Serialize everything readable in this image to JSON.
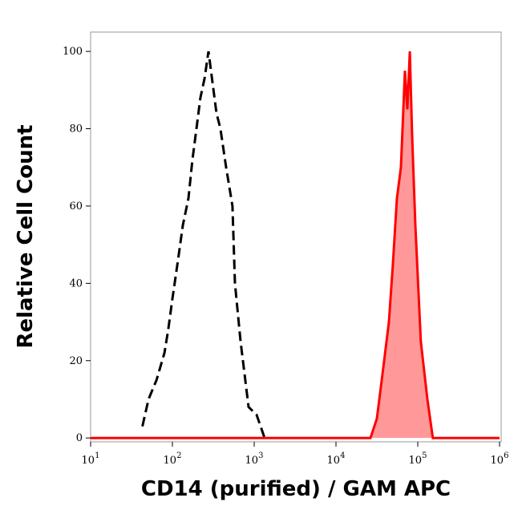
{
  "chart_data": {
    "type": "line",
    "x_scale": "log",
    "xlabel": "CD14 (purified) / GAM APC",
    "ylabel": "Relative Cell Count",
    "xlim": [
      10,
      1000000
    ],
    "ylim": [
      -1,
      105
    ],
    "xticks": [
      {
        "value": 10,
        "label": "10^1"
      },
      {
        "value": 100,
        "label": "10^2"
      },
      {
        "value": 1000,
        "label": "10^3"
      },
      {
        "value": 10000,
        "label": "10^4"
      },
      {
        "value": 100000,
        "label": "10^5"
      },
      {
        "value": 1000000,
        "label": "10^6"
      }
    ],
    "yticks": [
      0,
      20,
      40,
      60,
      80,
      100
    ],
    "series": [
      {
        "color": "#000000",
        "dashed": true,
        "fill": null,
        "x": [
          43,
          51,
          64,
          80,
          89,
          100,
          117,
          134,
          157,
          176,
          197,
          220,
          247,
          276,
          309,
          346,
          387,
          454,
          543,
          582,
          681,
          853,
          1070,
          1340
        ],
        "values": [
          3,
          10,
          15,
          22,
          28,
          36,
          46,
          55,
          62,
          72,
          80,
          88,
          93,
          100,
          92,
          84,
          80,
          70,
          60,
          40,
          25,
          8,
          6,
          0
        ]
      },
      {
        "color": "#ff0000",
        "dashed": false,
        "fill": "#ff9999",
        "x": [
          10,
          100,
          1000,
          10000,
          26400,
          31600,
          37800,
          44400,
          49700,
          55600,
          62200,
          69700,
          74600,
          79900,
          85400,
          93500,
          109000,
          131000,
          153000,
          1000000
        ],
        "values": [
          0,
          0,
          0,
          0,
          0,
          5,
          18,
          30,
          45,
          62,
          70,
          95,
          85,
          100,
          78,
          55,
          25,
          10,
          0,
          0
        ]
      }
    ]
  }
}
